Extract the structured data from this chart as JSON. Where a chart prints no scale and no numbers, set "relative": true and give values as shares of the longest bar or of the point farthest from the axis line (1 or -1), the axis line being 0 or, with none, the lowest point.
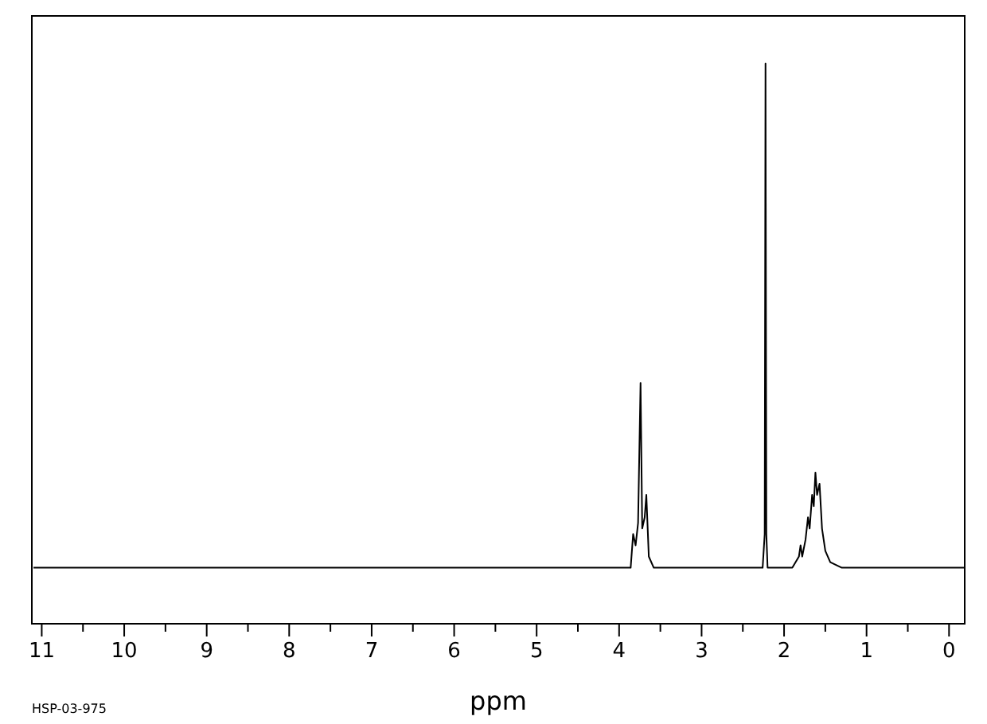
{
  "chart_data": {
    "type": "line",
    "relative": true,
    "xlabel": "ppm",
    "annotations": [
      "HSP-03-975"
    ],
    "xlim": [
      11.12,
      -0.19
    ],
    "xticks": [
      11,
      10,
      9,
      8,
      7,
      6,
      5,
      4,
      3,
      2,
      1,
      0
    ],
    "grid": false,
    "marker": "none",
    "line_style": "solid",
    "x": [
      11.1,
      4.0,
      3.86,
      3.83,
      3.8,
      3.77,
      3.74,
      3.72,
      3.69,
      3.67,
      3.64,
      3.58,
      3.4,
      2.26,
      2.235,
      2.225,
      2.215,
      2.2,
      2.0,
      1.9,
      1.82,
      1.8,
      1.78,
      1.74,
      1.71,
      1.69,
      1.66,
      1.64,
      1.62,
      1.6,
      1.57,
      1.54,
      1.5,
      1.44,
      1.3,
      -0.19
    ],
    "series": [
      {
        "color": "#000000",
        "values": [
          0.1,
          0.1,
          0.1,
          0.16,
          0.14,
          0.18,
          0.43,
          0.17,
          0.19,
          0.23,
          0.12,
          0.1,
          0.1,
          0.1,
          0.16,
          1,
          0.16,
          0.1,
          0.1,
          0.1,
          0.12,
          0.14,
          0.12,
          0.15,
          0.19,
          0.17,
          0.23,
          0.21,
          0.27,
          0.23,
          0.25,
          0.17,
          0.13,
          0.11,
          0.1,
          0.1
        ]
      }
    ]
  }
}
